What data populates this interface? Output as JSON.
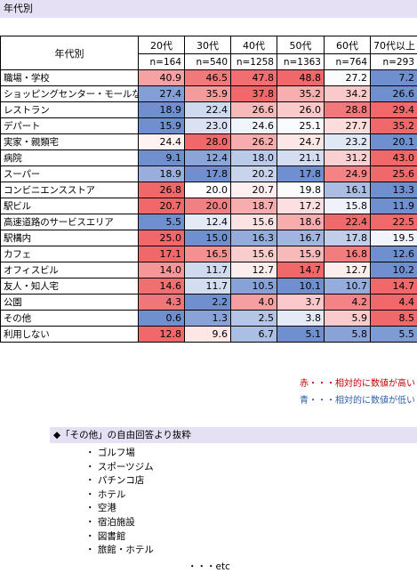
{
  "title": "年代別",
  "table": {
    "corner": "年代別",
    "ages": [
      "20代",
      "30代",
      "40代",
      "50代",
      "60代",
      "70代以上"
    ],
    "n": [
      "n=164",
      "n=540",
      "n=1258",
      "n=1363",
      "n=764",
      "n=293"
    ],
    "rows": [
      {
        "label": "職場・学校",
        "values": [
          "40.9",
          "46.5",
          "47.8",
          "48.8",
          "27.2",
          "7.2"
        ]
      },
      {
        "label": "ショッピングセンター・モールなど",
        "values": [
          "27.4",
          "35.9",
          "37.8",
          "35.2",
          "34.2",
          "26.6"
        ]
      },
      {
        "label": "レストラン",
        "values": [
          "18.9",
          "22.4",
          "26.6",
          "26.0",
          "28.8",
          "29.4"
        ]
      },
      {
        "label": "デパート",
        "values": [
          "15.9",
          "23.0",
          "24.6",
          "25.1",
          "27.7",
          "35.2"
        ]
      },
      {
        "label": "実家・親類宅",
        "values": [
          "24.4",
          "28.0",
          "26.2",
          "24.7",
          "23.2",
          "20.1"
        ]
      },
      {
        "label": "病院",
        "values": [
          "9.1",
          "12.4",
          "18.0",
          "21.1",
          "31.2",
          "43.0"
        ]
      },
      {
        "label": "スーパー",
        "values": [
          "18.9",
          "17.8",
          "20.2",
          "17.8",
          "24.9",
          "25.6"
        ]
      },
      {
        "label": "コンビニエンスストア",
        "values": [
          "26.8",
          "20.0",
          "20.7",
          "19.8",
          "16.1",
          "13.3"
        ]
      },
      {
        "label": "駅ビル",
        "values": [
          "20.7",
          "20.0",
          "18.7",
          "17.2",
          "15.8",
          "11.9"
        ]
      },
      {
        "label": "高速道路のサービスエリア",
        "values": [
          "5.5",
          "12.4",
          "15.6",
          "18.6",
          "22.4",
          "22.5"
        ]
      },
      {
        "label": "駅構内",
        "values": [
          "25.0",
          "15.0",
          "16.3",
          "16.7",
          "17.8",
          "19.5"
        ]
      },
      {
        "label": "カフェ",
        "values": [
          "17.1",
          "16.5",
          "15.6",
          "15.9",
          "16.8",
          "12.6"
        ]
      },
      {
        "label": "オフィスビル",
        "values": [
          "14.0",
          "11.7",
          "12.7",
          "14.7",
          "12.7",
          "10.2"
        ]
      },
      {
        "label": "友人・知人宅",
        "values": [
          "14.6",
          "11.7",
          "10.5",
          "10.1",
          "10.7",
          "14.7"
        ]
      },
      {
        "label": "公園",
        "values": [
          "4.3",
          "2.2",
          "4.0",
          "3.7",
          "4.2",
          "4.4"
        ]
      },
      {
        "label": "その他",
        "values": [
          "0.6",
          "1.3",
          "2.5",
          "3.8",
          "5.9",
          "8.5"
        ]
      },
      {
        "label": "利用しない",
        "values": [
          "12.8",
          "9.6",
          "6.7",
          "5.1",
          "5.8",
          "5.5"
        ]
      }
    ],
    "colors": {
      "high": "#f0686a",
      "mid": "#ffffff",
      "low": "#6f8fcf"
    }
  },
  "legend": {
    "red": "赤・・・相対的に数値が高い",
    "blue": "青・・・相対的に数値が低い"
  },
  "free_answers": {
    "heading": "◆「その他」の自由回答より抜粋",
    "items": [
      "・ ゴルフ場",
      "・ スポーツジム",
      "・ パチンコ店",
      "・ ホテル",
      "・ 空港",
      "・ 宿泊施設",
      "・ 図書館",
      "・ 旅館・ホテル"
    ],
    "etc": "・・・etc"
  }
}
